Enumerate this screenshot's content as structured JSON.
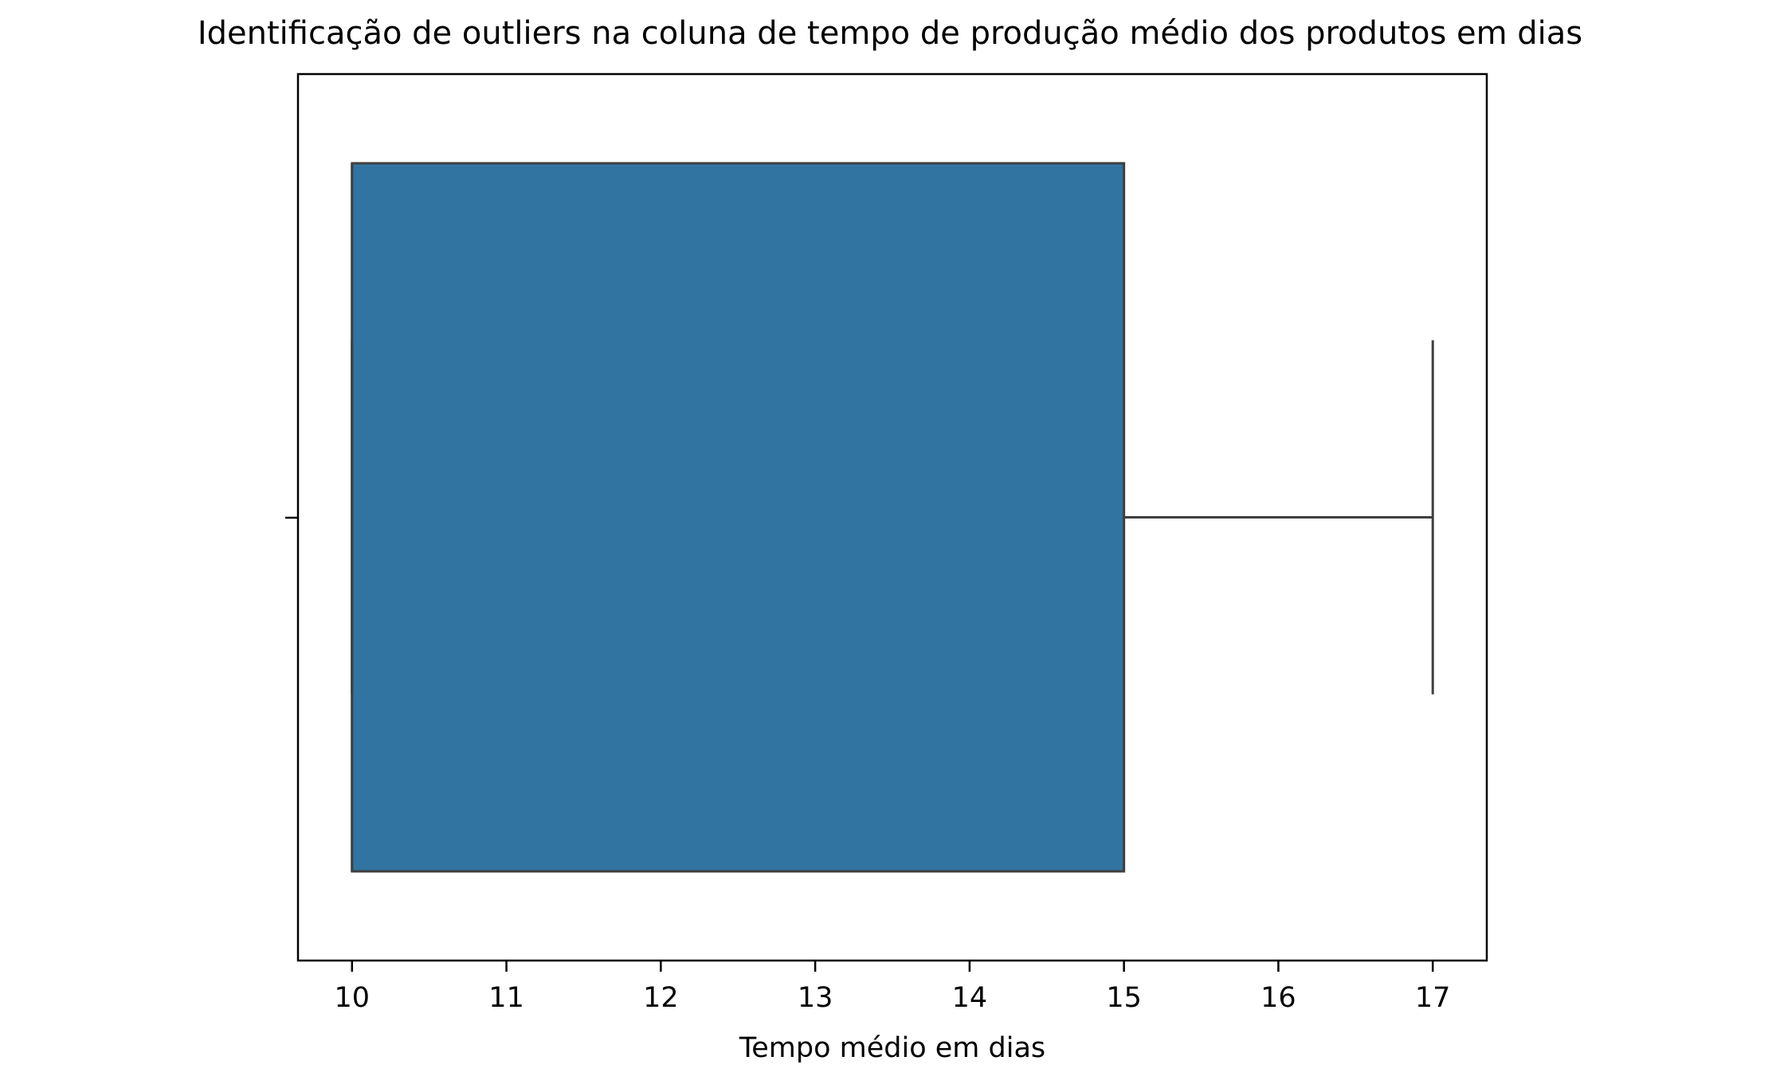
{
  "chart_data": {
    "type": "boxplot",
    "title": "Identificação de outliers na coluna de tempo de produção médio dos produtos em dias",
    "xlabel": "Tempo médio em dias",
    "ylabel": "",
    "orientation": "horizontal",
    "xlim": [
      9.65,
      17.35
    ],
    "xticks": [
      10,
      11,
      12,
      13,
      14,
      15,
      16,
      17
    ],
    "xtick_labels": [
      "10",
      "11",
      "12",
      "13",
      "14",
      "15",
      "16",
      "17"
    ],
    "grid": false,
    "legend": false,
    "boxes": [
      {
        "min": 10,
        "q1": 10,
        "median": 10,
        "q3": 15,
        "max": 17,
        "outliers": [],
        "color": "#3274a1",
        "edge_color": "#3f3f3f"
      }
    ]
  }
}
